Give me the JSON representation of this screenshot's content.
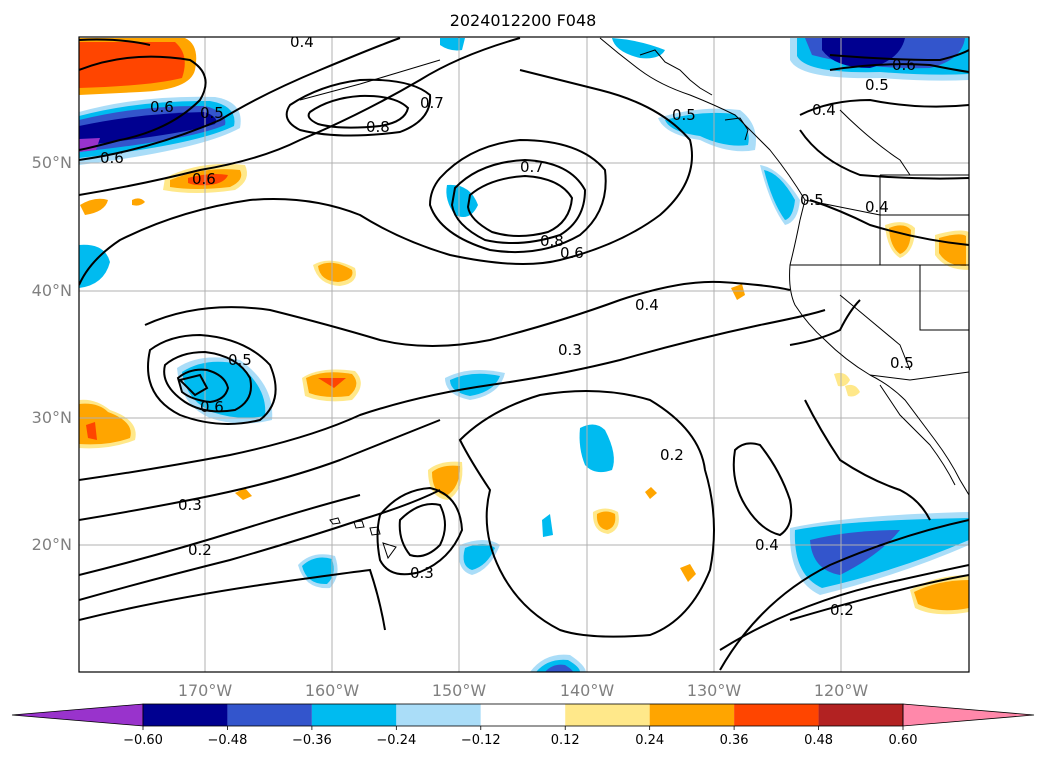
{
  "title": "2024012200 F048",
  "lat_labels": [
    "50°N",
    "40°N",
    "30°N",
    "20°N"
  ],
  "lon_labels": [
    "170°W",
    "160°W",
    "150°W",
    "140°W",
    "130°W",
    "120°W"
  ],
  "colorbar": {
    "ticks": [
      "−0.60",
      "−0.48",
      "−0.36",
      "−0.24",
      "−0.12",
      "0.12",
      "0.24",
      "0.36",
      "0.48",
      "0.60"
    ],
    "colors": [
      "#9933cc",
      "#000090",
      "#3355cc",
      "#00bbf0",
      "#aaddf8",
      "#ffffff",
      "#ffe88a",
      "#ffa500",
      "#ff4500",
      "#b22222",
      "#ff88aa"
    ]
  },
  "contour_labels": [
    "0.4",
    "0.5",
    "0.6",
    "0.7",
    "0.8",
    "0.7",
    "0.8",
    "0.6",
    "0.6",
    "0.6",
    "0.5",
    "0.6",
    "0.5",
    "0.4",
    "0.5",
    "0.4",
    "0.4",
    "0.3",
    "0.5",
    "0.6",
    "0.3",
    "0.2",
    "0.2",
    "0.3",
    "0.4",
    "0.2",
    "0.5"
  ]
}
